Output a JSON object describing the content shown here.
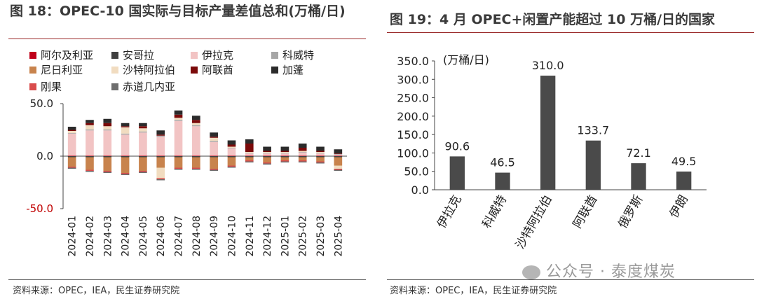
{
  "left": {
    "title": "图 18：OPEC-10 国实际与目标产量差值总和(万桶/日)",
    "source": "资料来源：OPEC，IEA，民生证券研究院",
    "chart_data": {
      "type": "bar",
      "stacked": true,
      "categories": [
        "2024-01",
        "2024-02",
        "2024-03",
        "2024-04",
        "2024-05",
        "2024-06",
        "2024-07",
        "2024-08",
        "2024-09",
        "2024-10",
        "2024-11",
        "2024-12",
        "2025-01",
        "2025-02",
        "2025-03",
        "2025-04"
      ],
      "ylim": [
        -50,
        50
      ],
      "yticks": [
        "50.0",
        "0.0",
        "-50.0"
      ],
      "ytick_values": [
        50,
        0,
        -50
      ],
      "legend_position": "top-left",
      "series": [
        {
          "name": "阿尔及利亚",
          "color": "#c0001a",
          "values": [
            0.5,
            0.5,
            0.5,
            0.5,
            0.5,
            0.5,
            0.5,
            0.5,
            0.5,
            0.5,
            0.5,
            0.5,
            0.5,
            0.5,
            0.5,
            0.5
          ]
        },
        {
          "name": "安哥拉",
          "color": "#404040",
          "values": [
            -1,
            -1,
            -1,
            -1,
            -1,
            -1,
            -1,
            -1,
            -1,
            -1,
            -1,
            -1,
            -1,
            -1,
            -1,
            -1
          ]
        },
        {
          "name": "伊拉克",
          "color": "#f2c4c4",
          "values": [
            21,
            24,
            24,
            20,
            22,
            18,
            33,
            28,
            13,
            7,
            2,
            2,
            2,
            3,
            2,
            1
          ]
        },
        {
          "name": "科威特",
          "color": "#a6a6a6",
          "values": [
            0.5,
            1,
            1,
            1,
            1,
            1,
            1,
            1,
            1,
            0.5,
            0.5,
            0.5,
            0.5,
            0.5,
            0.5,
            0.5
          ]
        },
        {
          "name": "尼日利亚",
          "color": "#c8834d",
          "values": [
            -9,
            -12,
            -13,
            -15,
            -13,
            -10,
            -10,
            -10,
            -11,
            -8,
            -3,
            -5,
            -3,
            -3,
            -4,
            -8
          ]
        },
        {
          "name": "沙特阿拉伯",
          "color": "#f1dcc0",
          "values": [
            2,
            4,
            3,
            6,
            3,
            -10,
            2,
            2,
            3,
            1,
            1,
            1,
            1,
            1,
            1,
            -3
          ]
        },
        {
          "name": "阿联酋",
          "color": "#7b0a0a",
          "values": [
            1,
            2,
            3,
            1,
            2,
            1,
            3,
            3,
            1,
            2,
            8,
            1,
            1,
            3,
            1,
            0.5
          ]
        },
        {
          "name": "加蓬",
          "color": "#2b2b2b",
          "values": [
            3,
            3,
            4,
            3,
            3,
            4,
            4,
            4,
            4,
            4,
            4,
            4,
            4,
            4,
            4,
            4
          ]
        },
        {
          "name": "刚果",
          "color": "#d94c4c",
          "values": [
            -1,
            -1,
            -1,
            -1,
            -1,
            -1,
            -1,
            -1,
            -1,
            -1,
            -1,
            -1,
            -1,
            -1,
            -1,
            -1
          ]
        },
        {
          "name": "赤道几内亚",
          "color": "#6e6e6e",
          "values": [
            -1,
            -1,
            -1,
            -1,
            -1,
            -1,
            -1,
            -1,
            -1,
            -1,
            -1,
            -1,
            -1,
            -1,
            -1,
            -1
          ]
        }
      ]
    }
  },
  "right": {
    "title": "图 19：4 月 OPEC+闲置产能超过 10 万桶/日的国家",
    "source": "资料来源：OPEC，IEA，民生证券研究院",
    "chart_data": {
      "type": "bar",
      "unit_label": "(万桶/日)",
      "categories": [
        "伊拉克",
        "科威特",
        "沙特阿拉伯",
        "阿联酋",
        "俄罗斯",
        "伊朗"
      ],
      "values": [
        90.6,
        46.5,
        310.0,
        133.7,
        72.1,
        49.5
      ],
      "value_labels": [
        "90.6",
        "46.5",
        "310.0",
        "133.7",
        "72.1",
        "49.5"
      ],
      "bar_color": "#4a4a4a",
      "ylim": [
        0,
        350
      ],
      "yticks": [
        "0.0",
        "50.0",
        "100.0",
        "150.0",
        "200.0",
        "250.0",
        "300.0",
        "350.0"
      ],
      "ytick_values": [
        0,
        50,
        100,
        150,
        200,
        250,
        300,
        350
      ]
    }
  },
  "watermark": "公众号 · 泰度煤炭",
  "colors": {
    "title_rule": "#9a2a2a",
    "neg_tick": "#c00000"
  }
}
